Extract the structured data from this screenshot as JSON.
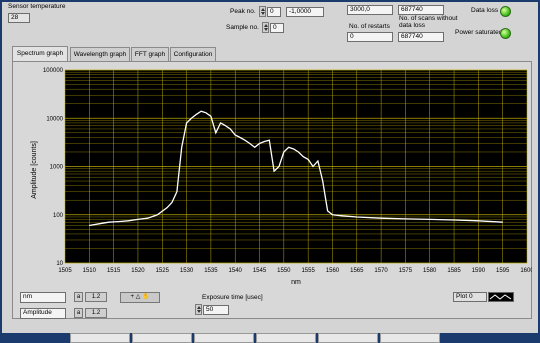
{
  "top": {
    "sensor_temp_label": "Sensor temperature",
    "sensor_temp_value": "28",
    "peak_no_label": "Peak no.",
    "peak_no_value": "0",
    "peak_value": "-1,0000",
    "sample_no_label": "Sample no.",
    "sample_no_value": "0",
    "field_3000": "3000,0",
    "restarts_label": "No. of restarts",
    "restarts_value": "0",
    "scans_top": "687740",
    "scans_label": "No. of scans without data loss",
    "scans_value": "687740",
    "data_loss_label": "Data loss",
    "power_saturated_label": "Power saturated"
  },
  "tabs": [
    {
      "label": "Spectrum graph"
    },
    {
      "label": "Wavelength graph"
    },
    {
      "label": "FFT graph"
    },
    {
      "label": "Configuration"
    }
  ],
  "controls": {
    "x_unit": "nm",
    "y_unit": "Amplitude",
    "exposure_label": "Exposure time [usec]",
    "exposure_value": "50",
    "plot_label": "Plot 0"
  },
  "colors": {
    "plot_bg": "#000000",
    "grid": "#b8a800",
    "trace": "#ffffff",
    "led_on": "#44c21a"
  },
  "chart_data": {
    "type": "line",
    "xlabel": "nm",
    "ylabel": "Amplitude [counts]",
    "xlim": [
      1505,
      1600
    ],
    "ylim": [
      10,
      100000
    ],
    "yscale": "log",
    "x_ticks": [
      1505,
      1510,
      1515,
      1520,
      1525,
      1530,
      1535,
      1540,
      1545,
      1550,
      1555,
      1560,
      1565,
      1570,
      1575,
      1580,
      1585,
      1590,
      1595,
      1600
    ],
    "y_ticks": [
      10,
      100,
      1000,
      10000,
      100000
    ],
    "y_tick_labels": [
      "10",
      "100",
      "1000",
      "10000",
      "100000"
    ],
    "grid": true,
    "series": [
      {
        "x": [
          1510,
          1512,
          1514,
          1516,
          1518,
          1520,
          1522,
          1524,
          1526,
          1527,
          1528,
          1529,
          1530,
          1531,
          1532,
          1533,
          1534,
          1535,
          1536,
          1537,
          1538,
          1539,
          1540,
          1541,
          1542,
          1543,
          1544,
          1545,
          1546,
          1547,
          1548,
          1549,
          1550,
          1551,
          1552,
          1553,
          1554,
          1555,
          1556,
          1557,
          1558,
          1559,
          1560,
          1562,
          1565,
          1570,
          1575,
          1580,
          1585,
          1590,
          1595
        ],
        "y": [
          60,
          65,
          70,
          72,
          75,
          80,
          85,
          100,
          140,
          180,
          300,
          2500,
          8000,
          10000,
          12000,
          14000,
          13000,
          11000,
          5000,
          8000,
          7000,
          6000,
          4500,
          4000,
          3500,
          3000,
          2500,
          3000,
          3300,
          3500,
          800,
          1000,
          2000,
          2500,
          2300,
          2000,
          1600,
          1400,
          1000,
          1300,
          500,
          120,
          100,
          95,
          90,
          85,
          82,
          80,
          78,
          75,
          70
        ]
      }
    ]
  }
}
